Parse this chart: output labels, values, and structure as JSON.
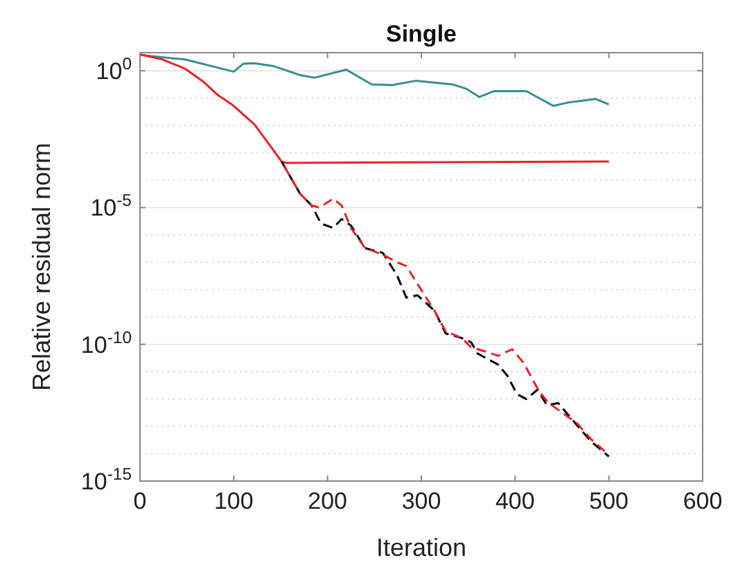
{
  "chart_data": {
    "type": "line",
    "title": "Single",
    "xlabel": "Iteration",
    "ylabel": "Relative residual norm",
    "log": "y",
    "grid": "y",
    "xlim": [
      0,
      600
    ],
    "xticks": [
      0,
      100,
      200,
      300,
      400,
      500,
      600
    ],
    "ylim": [
      1e-15,
      4.6
    ],
    "yticks": [
      {
        "value": 1,
        "label": "10$^{0}$"
      },
      {
        "value": 0.1,
        "label": null
      },
      {
        "value": 0.01,
        "label": null
      },
      {
        "value": 0.001,
        "label": null
      },
      {
        "value": 0.0001,
        "label": null
      },
      {
        "value": 1e-05,
        "label": "10$^{-5}$"
      },
      {
        "value": 1e-06,
        "label": null
      },
      {
        "value": 1e-07,
        "label": null
      },
      {
        "value": 1e-08,
        "label": null
      },
      {
        "value": 1e-09,
        "label": null
      },
      {
        "value": 1e-10,
        "label": "10$^{-10}$"
      },
      {
        "value": 1e-11,
        "label": null
      },
      {
        "value": 1e-12,
        "label": null
      },
      {
        "value": 1e-13,
        "label": null
      },
      {
        "value": 1e-14,
        "label": null
      },
      {
        "value": 1e-15,
        "label": "10$^{-15}$"
      }
    ],
    "series": [
      {
        "color": "#3a8f8f",
        "line_style": "solid",
        "x": [
          0,
          48,
          100,
          110,
          122,
          142,
          171,
          186,
          220,
          247,
          269,
          294,
          333,
          348,
          362,
          377,
          412,
          441,
          456,
          486,
          500
        ],
        "values": [
          3.8,
          2.6,
          0.93,
          1.8,
          1.9,
          1.5,
          0.69,
          0.56,
          1.1,
          0.32,
          0.3,
          0.43,
          0.32,
          0.22,
          0.11,
          0.18,
          0.18,
          0.052,
          0.069,
          0.093,
          0.059
        ]
      },
      {
        "color": "#e8202a",
        "line_style": "solid",
        "x": [
          0,
          24,
          48,
          68,
          83,
          88,
          98,
          122,
          142,
          151,
          156,
          500
        ],
        "values": [
          4.0,
          2.6,
          1.2,
          0.39,
          0.13,
          0.1,
          0.059,
          0.011,
          0.0013,
          0.00048,
          0.00043,
          0.00048
        ]
      },
      {
        "color": "#000000",
        "line_style": "dashed",
        "x": [
          151,
          171,
          183,
          193,
          206,
          215,
          225,
          240,
          259,
          274,
          284,
          296,
          314,
          326,
          343,
          353,
          360,
          382,
          392,
          402,
          412,
          424,
          434,
          446,
          466,
          481,
          500
        ],
        "values": [
          0.00048,
          3.1e-05,
          1.2e-05,
          2.6e-06,
          1.8e-06,
          3.8e-06,
          2.2e-06,
          3.3e-07,
          2.2e-07,
          3.4e-08,
          5.1e-09,
          6.2e-09,
          1.7e-09,
          2.5e-10,
          1.7e-10,
          1.2e-10,
          4.6e-11,
          1.8e-11,
          6.9e-12,
          1.5e-12,
          1e-12,
          2.2e-12,
          5.9e-13,
          7.1e-13,
          1.1e-13,
          2.8e-14,
          7.9e-15
        ]
      },
      {
        "color": "#e8202a",
        "line_style": "dashed",
        "x": [
          151,
          171,
          183,
          191,
          206,
          215,
          225,
          240,
          259,
          274,
          284,
          299,
          314,
          326,
          343,
          353,
          368,
          382,
          397,
          409,
          426,
          436,
          466,
          481,
          500
        ],
        "values": [
          0.00048,
          3.1e-05,
          1.2e-05,
          1e-05,
          2.1e-05,
          1.2e-05,
          1.8e-06,
          3.3e-07,
          1.9e-07,
          1e-07,
          7.2e-08,
          1.1e-08,
          1.7e-09,
          3e-10,
          1.7e-10,
          7.9e-11,
          5.5e-11,
          3.8e-11,
          6.6e-11,
          2.1e-11,
          1.8e-12,
          7.1e-13,
          1.3e-13,
          3.4e-14,
          9.1e-15
        ]
      }
    ]
  }
}
